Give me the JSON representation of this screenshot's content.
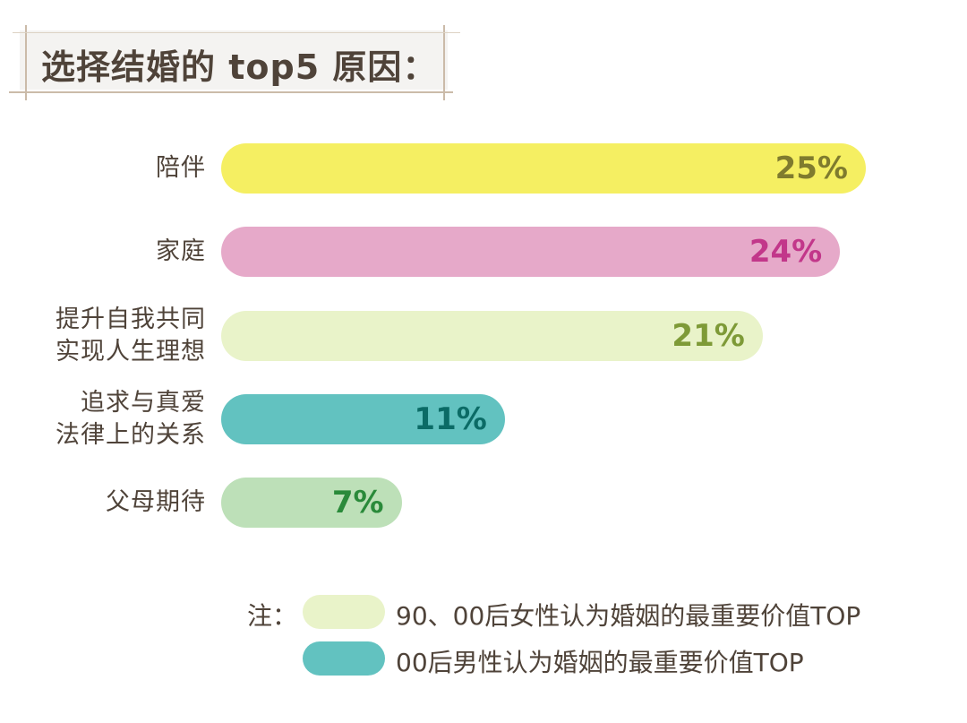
{
  "title": "选择结婚的 top5 原因：",
  "chart_data": {
    "type": "bar",
    "orientation": "horizontal",
    "categories": [
      "陪伴",
      "家庭",
      "提升自我共同\n实现人生理想",
      "追求与真爱\n法律上的关系",
      "父母期待"
    ],
    "values": [
      25,
      24,
      21,
      11,
      7
    ],
    "value_labels": [
      "25%",
      "24%",
      "21%",
      "11%",
      "7%"
    ],
    "unit": "%",
    "bar_colors": [
      "#f5ef62",
      "#e6a9c9",
      "#e9f3c9",
      "#62c2c0",
      "#bde0b8"
    ],
    "label_colors": [
      "#7f7b2e",
      "#c2378a",
      "#7e9a37",
      "#0b6b66",
      "#2a8a3a"
    ],
    "grid": false
  },
  "legend": {
    "prefix": "注：",
    "items": [
      {
        "label": "90、00后女性认为婚姻的最重要价值TOP",
        "color": "#e9f3c9"
      },
      {
        "label": "00后男性认为婚姻的最重要价值TOP",
        "color": "#62c2c0"
      }
    ]
  }
}
